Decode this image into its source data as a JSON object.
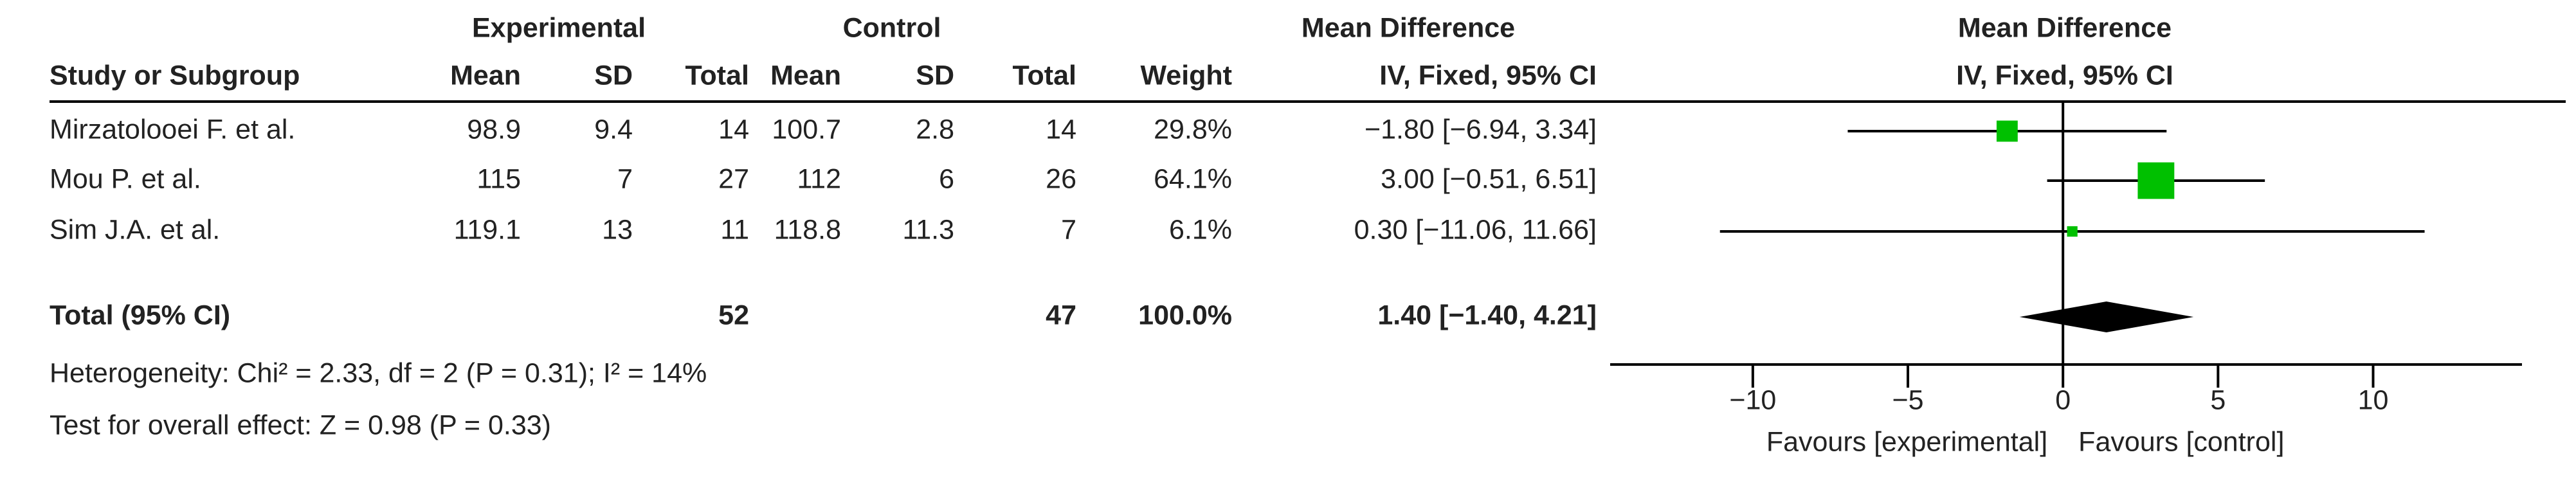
{
  "chart_data": {
    "type": "forest",
    "group_headers": [
      "Experimental",
      "Control",
      "Mean Difference",
      "Mean Difference"
    ],
    "columns": [
      "Study or Subgroup",
      "Mean",
      "SD",
      "Total",
      "Mean",
      "SD",
      "Total",
      "Weight",
      "IV, Fixed, 95% CI",
      "IV, Fixed, 95% CI"
    ],
    "studies": [
      {
        "name": "Mirzatolooei F. et al.",
        "exp_mean": 98.9,
        "exp_sd": 9.4,
        "exp_total": 14,
        "ctl_mean": 100.7,
        "ctl_sd": 2.8,
        "ctl_total": 14,
        "weight": 29.8,
        "weight_label": "29.8%",
        "md": -1.8,
        "ci_low": -6.94,
        "ci_high": 3.34,
        "md_label": "−1.80 [−6.94, 3.34]"
      },
      {
        "name": "Mou P. et al.",
        "exp_mean": 115,
        "exp_sd": 7,
        "exp_total": 27,
        "ctl_mean": 112,
        "ctl_sd": 6,
        "ctl_total": 26,
        "weight": 64.1,
        "weight_label": "64.1%",
        "md": 3.0,
        "ci_low": -0.51,
        "ci_high": 6.51,
        "md_label": "3.00 [−0.51, 6.51]"
      },
      {
        "name": "Sim J.A. et al.",
        "exp_mean": 119.1,
        "exp_sd": 13,
        "exp_total": 11,
        "ctl_mean": 118.8,
        "ctl_sd": 11.3,
        "ctl_total": 7,
        "weight": 6.1,
        "weight_label": "6.1%",
        "md": 0.3,
        "ci_low": -11.06,
        "ci_high": 11.66,
        "md_label": "0.30 [−11.06, 11.66]"
      }
    ],
    "total": {
      "name": "Total (95% CI)",
      "exp_total": 52,
      "ctl_total": 47,
      "weight": 100.0,
      "weight_label": "100.0%",
      "md": 1.4,
      "ci_low": -1.4,
      "ci_high": 4.21,
      "md_label": "1.40 [−1.40, 4.21]"
    },
    "heterogeneity": "Heterogeneity: Chi² = 2.33, df = 2 (P = 0.31); I² = 14%",
    "overall_effect": "Test for overall effect: Z = 0.98 (P = 0.33)",
    "xlim": [
      -14.6,
      14.8
    ],
    "xticks": [
      {
        "value": -10,
        "label": "−10"
      },
      {
        "value": -5,
        "label": "−5"
      },
      0,
      5,
      10
    ],
    "favours_left": "Favours [experimental]",
    "favours_right": "Favours [control]",
    "marker_color": "#00c000"
  }
}
